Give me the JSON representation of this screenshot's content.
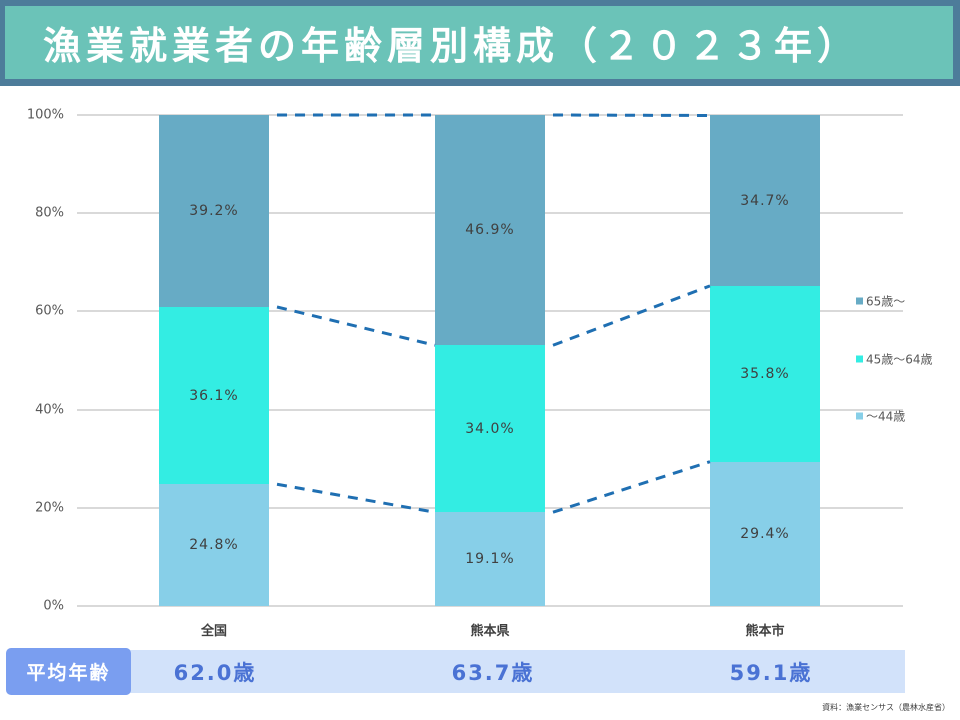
{
  "title": "漁業就業者の年齢層別構成（２０２３年）",
  "chart_data": {
    "type": "bar",
    "stacked": true,
    "percent": true,
    "title": "漁業就業者の年齢層別構成（２０２３年）",
    "categories": [
      "全国",
      "熊本県",
      "熊本市"
    ],
    "series": [
      {
        "name": "～44歳",
        "values": [
          24.8,
          19.1,
          29.4
        ],
        "color": "#87cfe8"
      },
      {
        "name": "45歳～64歳",
        "values": [
          36.1,
          34.0,
          35.8
        ],
        "color": "#33ede3"
      },
      {
        "name": "65歳～",
        "values": [
          39.2,
          46.9,
          34.7
        ],
        "color": "#67abc5"
      }
    ],
    "data_labels": {
      "全国": [
        "24.8%",
        "36.1%",
        "39.2%"
      ],
      "熊本県": [
        "19.1%",
        "34.0%",
        "46.9%"
      ],
      "熊本市": [
        "29.4%",
        "35.8%",
        "34.7%"
      ]
    },
    "y_ticks": [
      "0%",
      "20%",
      "40%",
      "60%",
      "80%",
      "100%"
    ],
    "ylim": [
      0,
      100
    ],
    "xlabel": "",
    "ylabel": "",
    "grid": true,
    "legend_position": "right",
    "connector_lines": "dashed",
    "connector_color": "#1f6fb2"
  },
  "legend": [
    {
      "label": "65歳～",
      "color": "#67abc5"
    },
    {
      "label": "45歳～64歳",
      "color": "#33ede3"
    },
    {
      "label": "～44歳",
      "color": "#87cfe8"
    }
  ],
  "average_age": {
    "label": "平均年齢",
    "values": [
      "62.0歳",
      "63.7歳",
      "59.1歳"
    ]
  },
  "source": "資料：漁業センサス（農林水産省）"
}
